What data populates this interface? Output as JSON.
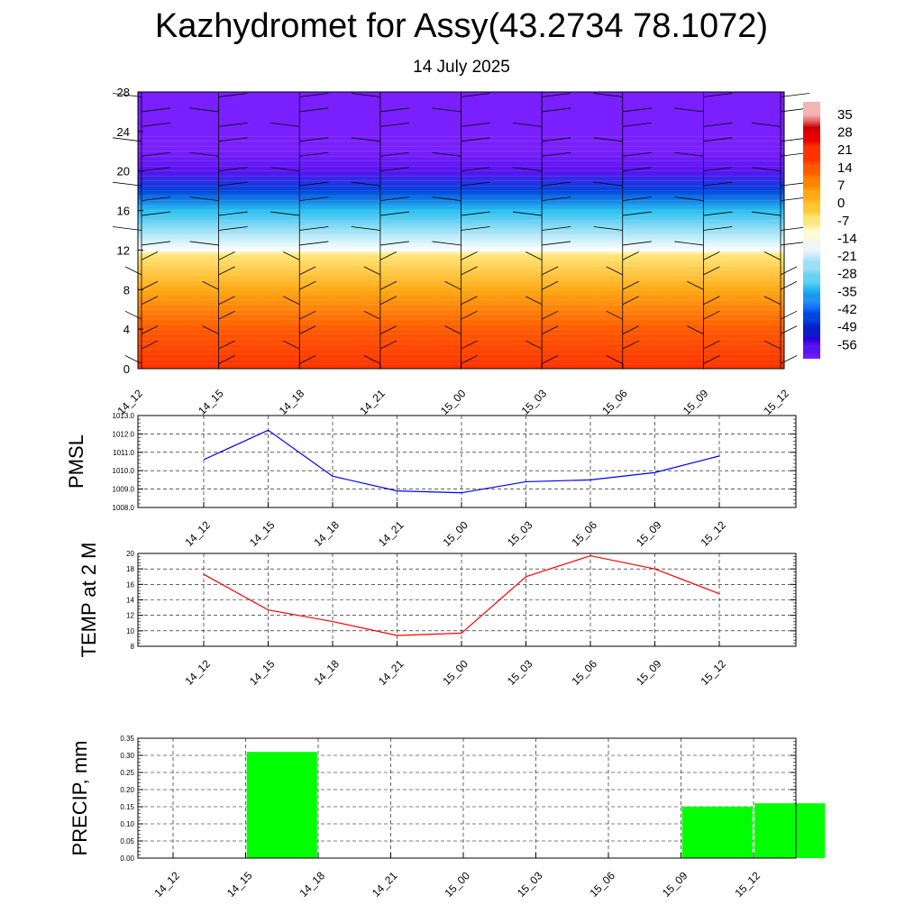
{
  "page": {
    "title": "Kazhydromet for Assy(43.2734 78.1072)",
    "subtitle": "14 July 2025"
  },
  "colors": {
    "pmsl_line": "#0000ff",
    "temp_line": "#ff0000",
    "precip_bar": "#00ff00",
    "grid": "#000000",
    "wind_barb": "#000000"
  },
  "chart_data": [
    {
      "type": "heatmap",
      "x_categories": [
        "14_12",
        "14_15",
        "14_18",
        "14_21",
        "15_00",
        "15_03",
        "15_06",
        "15_09",
        "15_12"
      ],
      "ylim": [
        0,
        28
      ],
      "y_ticks": [
        "0",
        "4",
        "8",
        "12",
        "16",
        "20",
        "24",
        "28"
      ],
      "colorbar_labels": [
        "35",
        "28",
        "21",
        "14",
        "7",
        "0",
        "-7",
        "-14",
        "-21",
        "-28",
        "-35",
        "-42",
        "-49",
        "-56"
      ],
      "profile_by_level": [
        {
          "level": 0,
          "value": 20
        },
        {
          "level": 4,
          "value": 14
        },
        {
          "level": 8,
          "value": 5
        },
        {
          "level": 11.5,
          "value": -7
        },
        {
          "level": 12,
          "value": -14
        },
        {
          "level": 14,
          "value": -24
        },
        {
          "level": 16,
          "value": -33
        },
        {
          "level": 18,
          "value": -44
        },
        {
          "level": 20,
          "value": -56
        },
        {
          "level": 22,
          "value": -60
        },
        {
          "level": 28,
          "value": -60
        }
      ],
      "wind_barbs": true
    },
    {
      "type": "line",
      "ylabel": "PMSL",
      "categories": [
        "14_12",
        "14_15",
        "14_18",
        "14_21",
        "15_00",
        "15_03",
        "15_06",
        "15_09",
        "15_12"
      ],
      "values": [
        1010.6,
        1012.2,
        1009.7,
        1008.9,
        1008.8,
        1009.4,
        1009.5,
        1009.9,
        1010.8
      ],
      "ylim": [
        1008.0,
        1013.0
      ],
      "y_ticks": [
        "1008.0",
        "1009.0",
        "1010.0",
        "1011.0",
        "1012.0",
        "1013.0"
      ],
      "grid": true
    },
    {
      "type": "line",
      "ylabel": "TEMP at 2 M",
      "categories": [
        "14_12",
        "14_15",
        "14_18",
        "14_21",
        "15_00",
        "15_03",
        "15_06",
        "15_09",
        "15_12"
      ],
      "values": [
        17.3,
        12.7,
        11.2,
        9.4,
        9.7,
        17.0,
        19.7,
        18.0,
        14.8
      ],
      "ylim": [
        8,
        20
      ],
      "y_ticks": [
        "8",
        "10",
        "12",
        "14",
        "16",
        "18",
        "20"
      ],
      "grid": true
    },
    {
      "type": "bar",
      "ylabel": "PRECIP, mm",
      "categories": [
        "14_12",
        "14_15",
        "14_18",
        "14_21",
        "15_00",
        "15_03",
        "15_06",
        "15_09",
        "15_12"
      ],
      "values": [
        0,
        0.31,
        0,
        0,
        0,
        0,
        0,
        0.15,
        0.16
      ],
      "ylim": [
        0,
        0.35
      ],
      "y_ticks": [
        "0.00",
        "0.05",
        "0.10",
        "0.15",
        "0.20",
        "0.25",
        "0.30",
        "0.35"
      ],
      "grid": true
    }
  ]
}
